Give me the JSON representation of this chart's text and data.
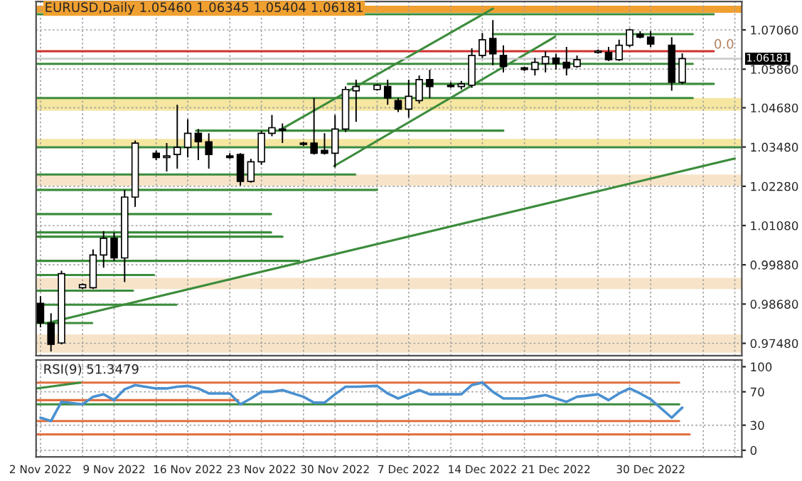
{
  "chart_data": [
    {
      "type": "candlestick",
      "title": "EURUSD,Daily 1.05460 1.06345 1.05404 1.06181",
      "x": [
        "2022-11-02",
        "2022-11-03",
        "2022-11-04",
        "2022-11-06",
        "2022-11-07",
        "2022-11-08",
        "2022-11-09",
        "2022-11-10",
        "2022-11-11",
        "2022-11-13",
        "2022-11-14",
        "2022-11-15",
        "2022-11-16",
        "2022-11-17",
        "2022-11-18",
        "2022-11-20",
        "2022-11-21",
        "2022-11-22",
        "2022-11-23",
        "2022-11-24",
        "2022-11-25",
        "2022-11-27",
        "2022-11-28",
        "2022-11-29",
        "2022-11-30",
        "2022-12-01",
        "2022-12-02",
        "2022-12-04",
        "2022-12-05",
        "2022-12-06",
        "2022-12-07",
        "2022-12-08",
        "2022-12-09",
        "2022-12-11",
        "2022-12-12",
        "2022-12-13",
        "2022-12-14",
        "2022-12-15",
        "2022-12-16",
        "2022-12-18",
        "2022-12-19",
        "2022-12-20",
        "2022-12-21",
        "2022-12-22",
        "2022-12-23",
        "2022-12-25",
        "2022-12-26",
        "2022-12-27",
        "2022-12-28",
        "2022-12-29",
        "2022-12-30",
        "2023-01-01",
        "2023-01-02"
      ],
      "ohlc": [
        [
          0.987,
          0.9892,
          0.9797,
          0.981
        ],
        [
          0.981,
          0.984,
          0.9723,
          0.9745
        ],
        [
          0.9749,
          0.997,
          0.9745,
          0.9961
        ],
        [
          0.9918,
          0.9931,
          0.9914,
          0.9927
        ],
        [
          0.9918,
          1.0035,
          0.9914,
          1.0018
        ],
        [
          1.0018,
          1.0091,
          0.9979,
          1.0069
        ],
        [
          1.0069,
          1.0087,
          1.0,
          1.0009
        ],
        [
          1.0009,
          1.0217,
          0.9935,
          1.0195
        ],
        [
          1.0195,
          1.0368,
          1.0165,
          1.036
        ],
        [
          1.0329,
          1.0338,
          1.0308,
          1.0316
        ],
        [
          1.0316,
          1.036,
          1.0273,
          1.0321
        ],
        [
          1.0325,
          1.0477,
          1.0282,
          1.0347
        ],
        [
          1.0347,
          1.0433,
          1.0316,
          1.039
        ],
        [
          1.039,
          1.0403,
          1.0308,
          1.0364
        ],
        [
          1.0364,
          1.039,
          1.0282,
          1.0325
        ],
        [
          1.0321,
          1.0329,
          1.0312,
          1.0316
        ],
        [
          1.0325,
          1.0329,
          1.023,
          1.0243
        ],
        [
          1.0243,
          1.0312,
          1.0239,
          1.0303
        ],
        [
          1.0303,
          1.0398,
          1.0294,
          1.039
        ],
        [
          1.039,
          1.0446,
          1.0381,
          1.0407
        ],
        [
          1.0403,
          1.042,
          1.036,
          1.0399
        ],
        [
          1.036,
          1.0364,
          1.0351,
          1.0356
        ],
        [
          1.036,
          1.0498,
          1.0325,
          1.0329
        ],
        [
          1.0338,
          1.039,
          1.0325,
          1.0329
        ],
        [
          1.0329,
          1.0446,
          1.0286,
          1.0403
        ],
        [
          1.0403,
          1.0533,
          1.0394,
          1.0524
        ],
        [
          1.052,
          1.0554,
          1.0425,
          1.0533
        ],
        [
          1.0524,
          1.0541,
          1.052,
          1.0537
        ],
        [
          1.0533,
          1.0554,
          1.0477,
          1.0498
        ],
        [
          1.049,
          1.0498,
          1.0455,
          1.0464
        ],
        [
          1.0464,
          1.0554,
          1.0438,
          1.0503
        ],
        [
          1.049,
          1.0567,
          1.0481,
          1.0554
        ],
        [
          1.0554,
          1.0584,
          1.0498,
          1.0533
        ],
        [
          1.0537,
          1.0546,
          1.0529,
          1.0533
        ],
        [
          1.0533,
          1.055,
          1.0524,
          1.0541
        ],
        [
          1.0537,
          1.065,
          1.0529,
          1.0628
        ],
        [
          1.0628,
          1.0697,
          1.062,
          1.0676
        ],
        [
          1.068,
          1.0736,
          1.0598,
          1.0633
        ],
        [
          1.0628,
          1.0659,
          1.0576,
          1.0594
        ],
        [
          1.059,
          1.0594,
          1.058,
          1.0585
        ],
        [
          1.0585,
          1.062,
          1.0567,
          1.0607
        ],
        [
          1.0603,
          1.0641,
          1.0576,
          1.0624
        ],
        [
          1.062,
          1.0633,
          1.0585,
          1.0603
        ],
        [
          1.0607,
          1.0654,
          1.0567,
          1.059
        ],
        [
          1.0594,
          1.0628,
          1.059,
          1.0615
        ],
        [
          1.0637,
          1.0646,
          1.0633,
          1.0641
        ],
        [
          1.0637,
          1.0654,
          1.0611,
          1.0615
        ],
        [
          1.0615,
          1.0676,
          1.0611,
          1.0659
        ],
        [
          1.0659,
          1.071,
          1.0654,
          1.0706
        ],
        [
          1.0693,
          1.0702,
          1.068,
          1.0684
        ],
        [
          1.0684,
          1.0702,
          1.0654,
          1.0663
        ],
        [
          1.0659,
          1.0684,
          1.052,
          1.0546
        ],
        [
          1.0546,
          1.06345,
          1.05404,
          1.06181
        ]
      ],
      "series": [
        {
          "type": "line",
          "color": "#d03030",
          "x": [
            "2022-11-01T14:00",
            "2023-01-05"
          ],
          "values": [
            1.0641,
            1.0641
          ]
        },
        {
          "type": "line",
          "color": "#3c8c3c",
          "x": [
            "2022-11-01T14:00",
            "2023-01-05"
          ],
          "values": [
            1.0754,
            1.0754
          ]
        },
        {
          "type": "line",
          "color": "#3c8c3c",
          "x": [
            "2022-12-15",
            "2023-01-03"
          ],
          "values": [
            1.0693,
            1.0693
          ]
        },
        {
          "type": "line",
          "color": "#3c8c3c",
          "x": [
            "2022-11-01T14:00",
            "2023-01-03"
          ],
          "values": [
            1.0602,
            1.0602
          ]
        },
        {
          "type": "line",
          "color": "#3c8c3c",
          "x": [
            "2022-12-01T05:00",
            "2023-01-05"
          ],
          "values": [
            1.0541,
            1.0541
          ]
        },
        {
          "type": "line",
          "color": "#3c8c3c",
          "x": [
            "2022-11-01T14:00",
            "2023-01-03"
          ],
          "values": [
            1.0498,
            1.0498
          ]
        },
        {
          "type": "line",
          "color": "#3c8c3c",
          "x": [
            "2022-11-16T19:00",
            "2022-12-16"
          ],
          "values": [
            1.0398,
            1.0398
          ]
        },
        {
          "type": "line",
          "color": "#3c8c3c",
          "x": [
            "2022-11-01T14:00",
            "2023-01-07T16:00"
          ],
          "values": [
            1.0347,
            1.0347
          ]
        },
        {
          "type": "line",
          "color": "#3c8c3c",
          "x": [
            "2022-11-01T14:00",
            "2022-12-01T22:00"
          ],
          "values": [
            1.0264,
            1.0264
          ]
        },
        {
          "type": "line",
          "color": "#3c8c3c",
          "x": [
            "2022-11-01T14:00",
            "2022-12-04"
          ],
          "values": [
            1.0217,
            1.0217
          ]
        },
        {
          "type": "line",
          "color": "#3c8c3c",
          "x": [
            "2022-11-01T14:00",
            "2022-11-23T22:00"
          ],
          "values": [
            1.0143,
            1.0143
          ]
        },
        {
          "type": "line",
          "color": "#3c8c3c",
          "x": [
            "2022-11-01T14:00",
            "2022-11-23T22:00"
          ],
          "values": [
            1.0087,
            1.0087
          ]
        },
        {
          "type": "line",
          "color": "#3c8c3c",
          "x": [
            "2022-11-01T14:00",
            "2022-11-25"
          ],
          "values": [
            1.0074,
            1.0074
          ]
        },
        {
          "type": "line",
          "color": "#3c8c3c",
          "x": [
            "2022-11-01T14:00",
            "2022-11-26T14:00"
          ],
          "values": [
            1.0,
            1.0
          ]
        },
        {
          "type": "line",
          "color": "#3c8c3c",
          "x": [
            "2022-11-01T14:00",
            "2022-11-12T19:00"
          ],
          "values": [
            0.9957,
            0.9957
          ]
        },
        {
          "type": "line",
          "color": "#3c8c3c",
          "x": [
            "2022-11-01T14:00",
            "2022-11-10T19:00"
          ],
          "values": [
            0.9909,
            0.9909
          ]
        },
        {
          "type": "line",
          "color": "#3c8c3c",
          "x": [
            "2022-11-01T14:00",
            "2022-11-14T22:00"
          ],
          "values": [
            0.9866,
            0.9866
          ]
        },
        {
          "type": "line",
          "color": "#3c8c3c",
          "x": [
            "2022-11-01T14:00",
            "2022-11-06T22:00"
          ],
          "values": [
            0.981,
            0.981
          ]
        },
        {
          "type": "line",
          "color": "#3c8c3c",
          "x": [
            "2022-11-02T12:00",
            "2023-01-07"
          ],
          "values": [
            0.9809,
            1.0313
          ]
        },
        {
          "type": "line",
          "color": "#3c8c3c",
          "x": [
            "2022-11-24T22:00",
            "2022-12-15"
          ],
          "values": [
            1.0403,
            1.0771
          ]
        },
        {
          "type": "line",
          "color": "#3c8c3c",
          "x": [
            "2022-11-29T22:00",
            "2022-12-20T22:00"
          ],
          "values": [
            1.029,
            1.0685
          ]
        }
      ],
      "bands": [
        {
          "axis": "y",
          "from": 1.0758,
          "to": 1.078,
          "color": "#f0a030"
        },
        {
          "axis": "y",
          "from": 1.0459,
          "to": 1.0498,
          "color": "#f5e6a0"
        },
        {
          "axis": "y",
          "from": 1.0351,
          "to": 1.0373,
          "color": "#f5e6a0"
        },
        {
          "axis": "y",
          "from": 1.023,
          "to": 1.0264,
          "color": "#f7e4c8"
        },
        {
          "axis": "y",
          "from": 0.9914,
          "to": 0.9948,
          "color": "#f7e4c8"
        },
        {
          "axis": "y",
          "from": 0.9719,
          "to": 0.9775,
          "color": "#f7e4c8"
        }
      ],
      "ref_lines": [
        {
          "axis": "y",
          "value": 1.06181,
          "label": "1.06181",
          "color": "#c8c8c8"
        }
      ],
      "annotations": [
        {
          "text": "0.0",
          "x": "2023-01-05",
          "y": 1.0641
        }
      ],
      "xlim": [
        "2022-11-01T14:00",
        "2023-01-07T16:00"
      ],
      "xticks": [
        {
          "value": "2022-11-02",
          "label": null
        },
        {
          "value": "2022-11-06",
          "label": null
        },
        {
          "value": "2022-11-09",
          "label": null
        },
        {
          "value": "2022-11-13",
          "label": null
        },
        {
          "value": "2022-11-16",
          "label": null
        },
        {
          "value": "2022-11-20",
          "label": null
        },
        {
          "value": "2022-11-23",
          "label": null
        },
        {
          "value": "2022-11-27",
          "label": null
        },
        {
          "value": "2022-11-30",
          "label": null
        },
        {
          "value": "2022-12-04",
          "label": null
        },
        {
          "value": "2022-12-07",
          "label": null
        },
        {
          "value": "2022-12-11",
          "label": null
        },
        {
          "value": "2022-12-14",
          "label": null
        },
        {
          "value": "2022-12-18",
          "label": null
        },
        {
          "value": "2022-12-21",
          "label": null
        },
        {
          "value": "2022-12-25",
          "label": null
        },
        {
          "value": "2022-12-28",
          "label": null
        },
        {
          "value": "2022-12-30",
          "label": null
        },
        {
          "value": "2023-01-04",
          "label": null
        },
        {
          "value": "2023-01-07",
          "label": null
        }
      ],
      "ylim": [
        0.971,
        1.0793
      ],
      "yticks": [
        {
          "value": 0.9748,
          "label": "0.97480"
        },
        {
          "value": 0.9868,
          "label": "0.98680"
        },
        {
          "value": 0.9988,
          "label": "0.99880"
        },
        {
          "value": 1.0108,
          "label": "1.01080"
        },
        {
          "value": 1.0228,
          "label": "1.02280"
        },
        {
          "value": 1.0348,
          "label": "1.03480"
        },
        {
          "value": 1.0468,
          "label": "1.04680"
        },
        {
          "value": 1.0586,
          "label": "1.05860"
        },
        {
          "value": 1.0706,
          "label": "1.07060"
        }
      ],
      "grid": true,
      "tick_labels": "y"
    },
    {
      "type": "line",
      "annotations": [
        "RSI(9) 51.3479"
      ],
      "x": [
        "2022-11-02",
        "2022-11-03",
        "2022-11-04",
        "2022-11-06",
        "2022-11-07",
        "2022-11-08",
        "2022-11-09",
        "2022-11-10",
        "2022-11-11",
        "2022-11-13",
        "2022-11-14",
        "2022-11-15",
        "2022-11-16",
        "2022-11-17",
        "2022-11-18",
        "2022-11-20",
        "2022-11-21",
        "2022-11-22",
        "2022-11-23",
        "2022-11-24",
        "2022-11-25",
        "2022-11-27",
        "2022-11-28",
        "2022-11-29",
        "2022-11-30",
        "2022-12-01",
        "2022-12-02",
        "2022-12-04",
        "2022-12-05",
        "2022-12-06",
        "2022-12-07",
        "2022-12-08",
        "2022-12-09",
        "2022-12-11",
        "2022-12-12",
        "2022-12-13",
        "2022-12-14",
        "2022-12-15",
        "2022-12-16",
        "2022-12-18",
        "2022-12-19",
        "2022-12-20",
        "2022-12-21",
        "2022-12-22",
        "2022-12-23",
        "2022-12-25",
        "2022-12-26",
        "2022-12-27",
        "2022-12-28",
        "2022-12-29",
        "2022-12-30",
        "2023-01-01",
        "2023-01-02"
      ],
      "series": [
        {
          "type": "line",
          "color": "#e07040",
          "x": [
            "2022-11-01T14:00",
            "2023-01-01T17:00"
          ],
          "values": [
            81,
            81
          ]
        },
        {
          "type": "line",
          "color": "#e07040",
          "x": [
            "2022-11-01T14:00",
            "2022-11-20T19:00"
          ],
          "values": [
            60,
            60
          ]
        },
        {
          "type": "line",
          "color": "#e07040",
          "x": [
            "2022-11-01T14:00",
            "2023-01-01T17:00"
          ],
          "values": [
            35,
            35
          ]
        },
        {
          "type": "line",
          "color": "#e07040",
          "x": [
            "2022-11-01T14:00",
            "2023-01-02T17:00"
          ],
          "values": [
            19,
            19
          ]
        },
        {
          "type": "line",
          "color": "#3c8c3c",
          "x": [
            "2022-11-01T14:00",
            "2023-01-01T17:00"
          ],
          "values": [
            55,
            55
          ]
        },
        {
          "type": "line",
          "color": "#3c8c3c",
          "x": [
            "2022-11-01T14:00",
            "2022-11-05T19:00"
          ],
          "values": [
            74,
            81
          ]
        },
        {
          "type": "line",
          "color": "#4a90d0",
          "values": [
            39,
            35,
            58,
            55,
            64,
            67,
            60,
            73,
            78,
            74,
            74,
            76,
            77,
            74,
            68,
            68,
            55,
            62,
            70,
            70,
            72,
            64,
            57,
            57,
            67,
            76,
            76,
            77,
            68,
            62,
            67,
            72,
            67,
            67,
            67,
            78,
            81,
            70,
            62,
            62,
            64,
            66,
            62,
            58,
            64,
            67,
            60,
            68,
            74,
            68,
            61,
            39,
            51
          ]
        }
      ],
      "xlim": [
        "2022-11-01T14:00",
        "2023-01-07T16:00"
      ],
      "xticks": [
        {
          "value": "2022-11-02",
          "label": "2 Nov 2022"
        },
        {
          "value": "2022-11-06",
          "label": null
        },
        {
          "value": "2022-11-09",
          "label": "9 Nov 2022"
        },
        {
          "value": "2022-11-13",
          "label": null
        },
        {
          "value": "2022-11-16",
          "label": "16 Nov 2022"
        },
        {
          "value": "2022-11-20",
          "label": null
        },
        {
          "value": "2022-11-23",
          "label": "23 Nov 2022"
        },
        {
          "value": "2022-11-27",
          "label": null
        },
        {
          "value": "2022-11-30",
          "label": "30 Nov 2022"
        },
        {
          "value": "2022-12-04",
          "label": null
        },
        {
          "value": "2022-12-07",
          "label": "7 Dec 2022"
        },
        {
          "value": "2022-12-11",
          "label": null
        },
        {
          "value": "2022-12-14",
          "label": "14 Dec 2022"
        },
        {
          "value": "2022-12-18",
          "label": null
        },
        {
          "value": "2022-12-21",
          "label": "21 Dec 2022"
        },
        {
          "value": "2022-12-25",
          "label": null
        },
        {
          "value": "2022-12-28",
          "label": null
        },
        {
          "value": "2022-12-30",
          "label": "30 Dec 2022"
        },
        {
          "value": "2023-01-04",
          "label": null
        },
        {
          "value": "2023-01-07",
          "label": null
        }
      ],
      "ylim": [
        -8,
        108
      ],
      "yticks": [
        0,
        30,
        70,
        100
      ],
      "grid": true
    }
  ]
}
